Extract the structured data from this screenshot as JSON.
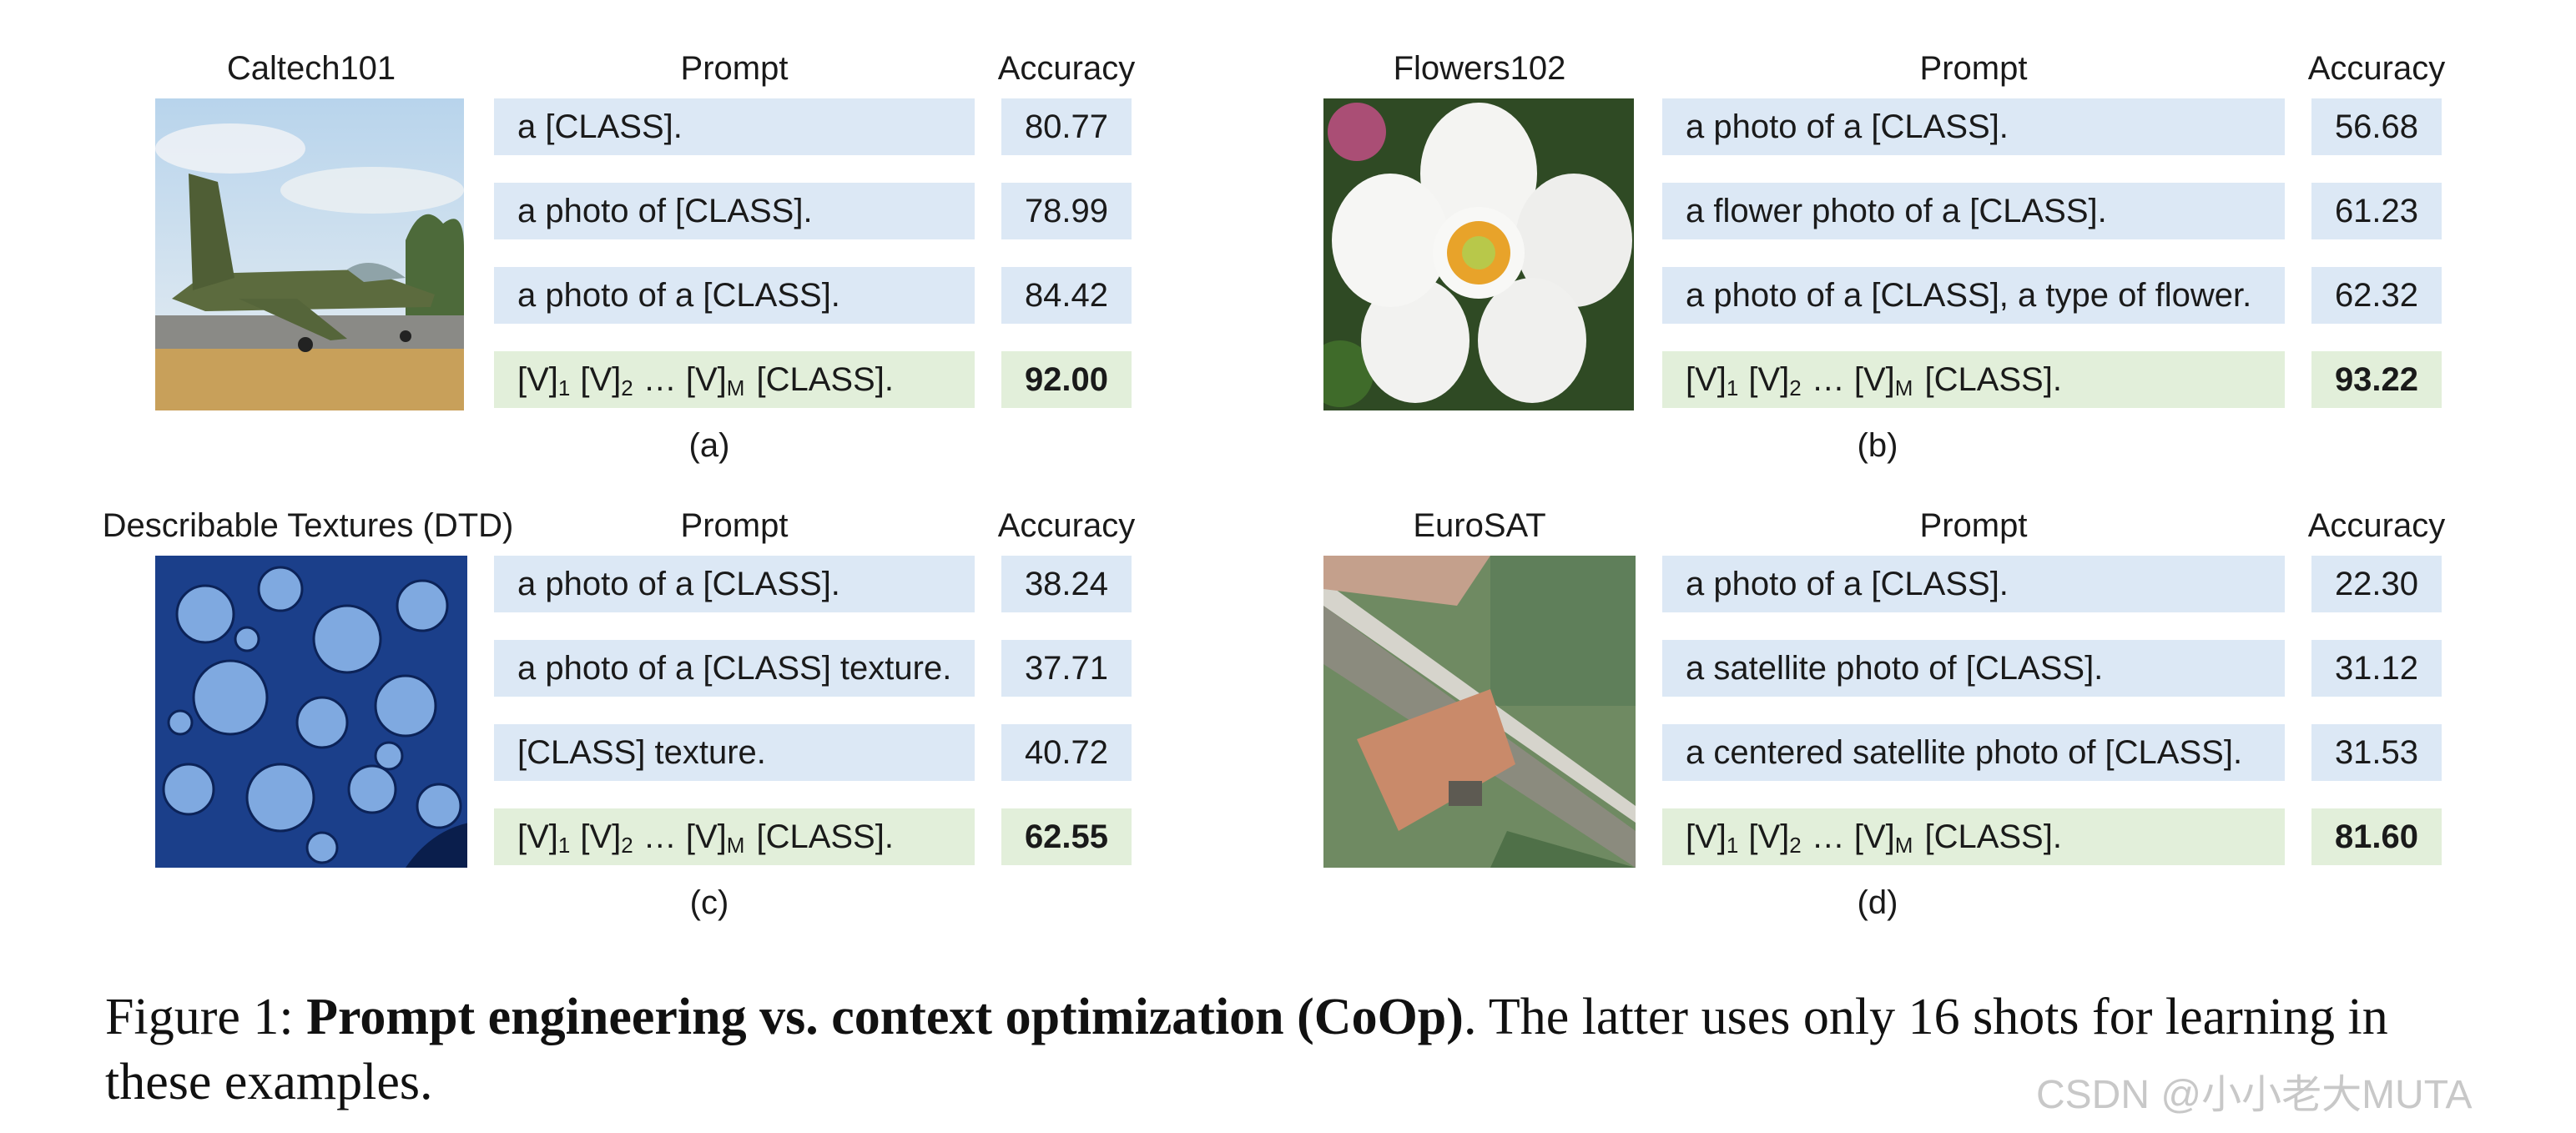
{
  "panels": {
    "a": {
      "dataset": "Caltech101",
      "prompt_header": "Prompt",
      "accuracy_header": "Accuracy",
      "rows": [
        {
          "prompt": "a [CLASS].",
          "accuracy": "80.77"
        },
        {
          "prompt": "a photo of [CLASS].",
          "accuracy": "78.99"
        },
        {
          "prompt": "a photo of a [CLASS].",
          "accuracy": "84.42"
        }
      ],
      "learned_accuracy": "92.00",
      "label": "(a)"
    },
    "b": {
      "dataset": "Flowers102",
      "prompt_header": "Prompt",
      "accuracy_header": "Accuracy",
      "rows": [
        {
          "prompt": "a photo of a [CLASS].",
          "accuracy": "56.68"
        },
        {
          "prompt": "a flower photo of a [CLASS].",
          "accuracy": "61.23"
        },
        {
          "prompt": "a photo of a [CLASS], a type of flower.",
          "accuracy": "62.32"
        }
      ],
      "learned_accuracy": "93.22",
      "label": "(b)"
    },
    "c": {
      "dataset": "Describable Textures (DTD)",
      "prompt_header": "Prompt",
      "accuracy_header": "Accuracy",
      "rows": [
        {
          "prompt": "a photo of a [CLASS].",
          "accuracy": "38.24"
        },
        {
          "prompt": "a photo of a [CLASS] texture.",
          "accuracy": "37.71"
        },
        {
          "prompt": "[CLASS] texture.",
          "accuracy": "40.72"
        }
      ],
      "learned_accuracy": "62.55",
      "label": "(c)"
    },
    "d": {
      "dataset": "EuroSAT",
      "prompt_header": "Prompt",
      "accuracy_header": "Accuracy",
      "rows": [
        {
          "prompt": "a photo of a [CLASS].",
          "accuracy": "22.30"
        },
        {
          "prompt": "a satellite photo of [CLASS].",
          "accuracy": "31.12"
        },
        {
          "prompt": "a centered satellite photo of [CLASS].",
          "accuracy": "31.53"
        }
      ],
      "learned_accuracy": "81.60",
      "label": "(d)"
    }
  },
  "learned_prompt": {
    "v": "[V]",
    "sub1": "1",
    "sub2": "2",
    "dots": "…",
    "subm": "M",
    "tail": "[CLASS]."
  },
  "caption": {
    "prefix": "Figure 1: ",
    "bold": "Prompt engineering vs. context optimization (CoOp)",
    "rest": ". The latter uses only 16 shots for learning in these examples."
  },
  "watermark": "CSDN @小小老大MUTA",
  "colors": {
    "handcrafted_row_bg": "#dce8f5",
    "learned_row_bg": "#e2efda"
  }
}
